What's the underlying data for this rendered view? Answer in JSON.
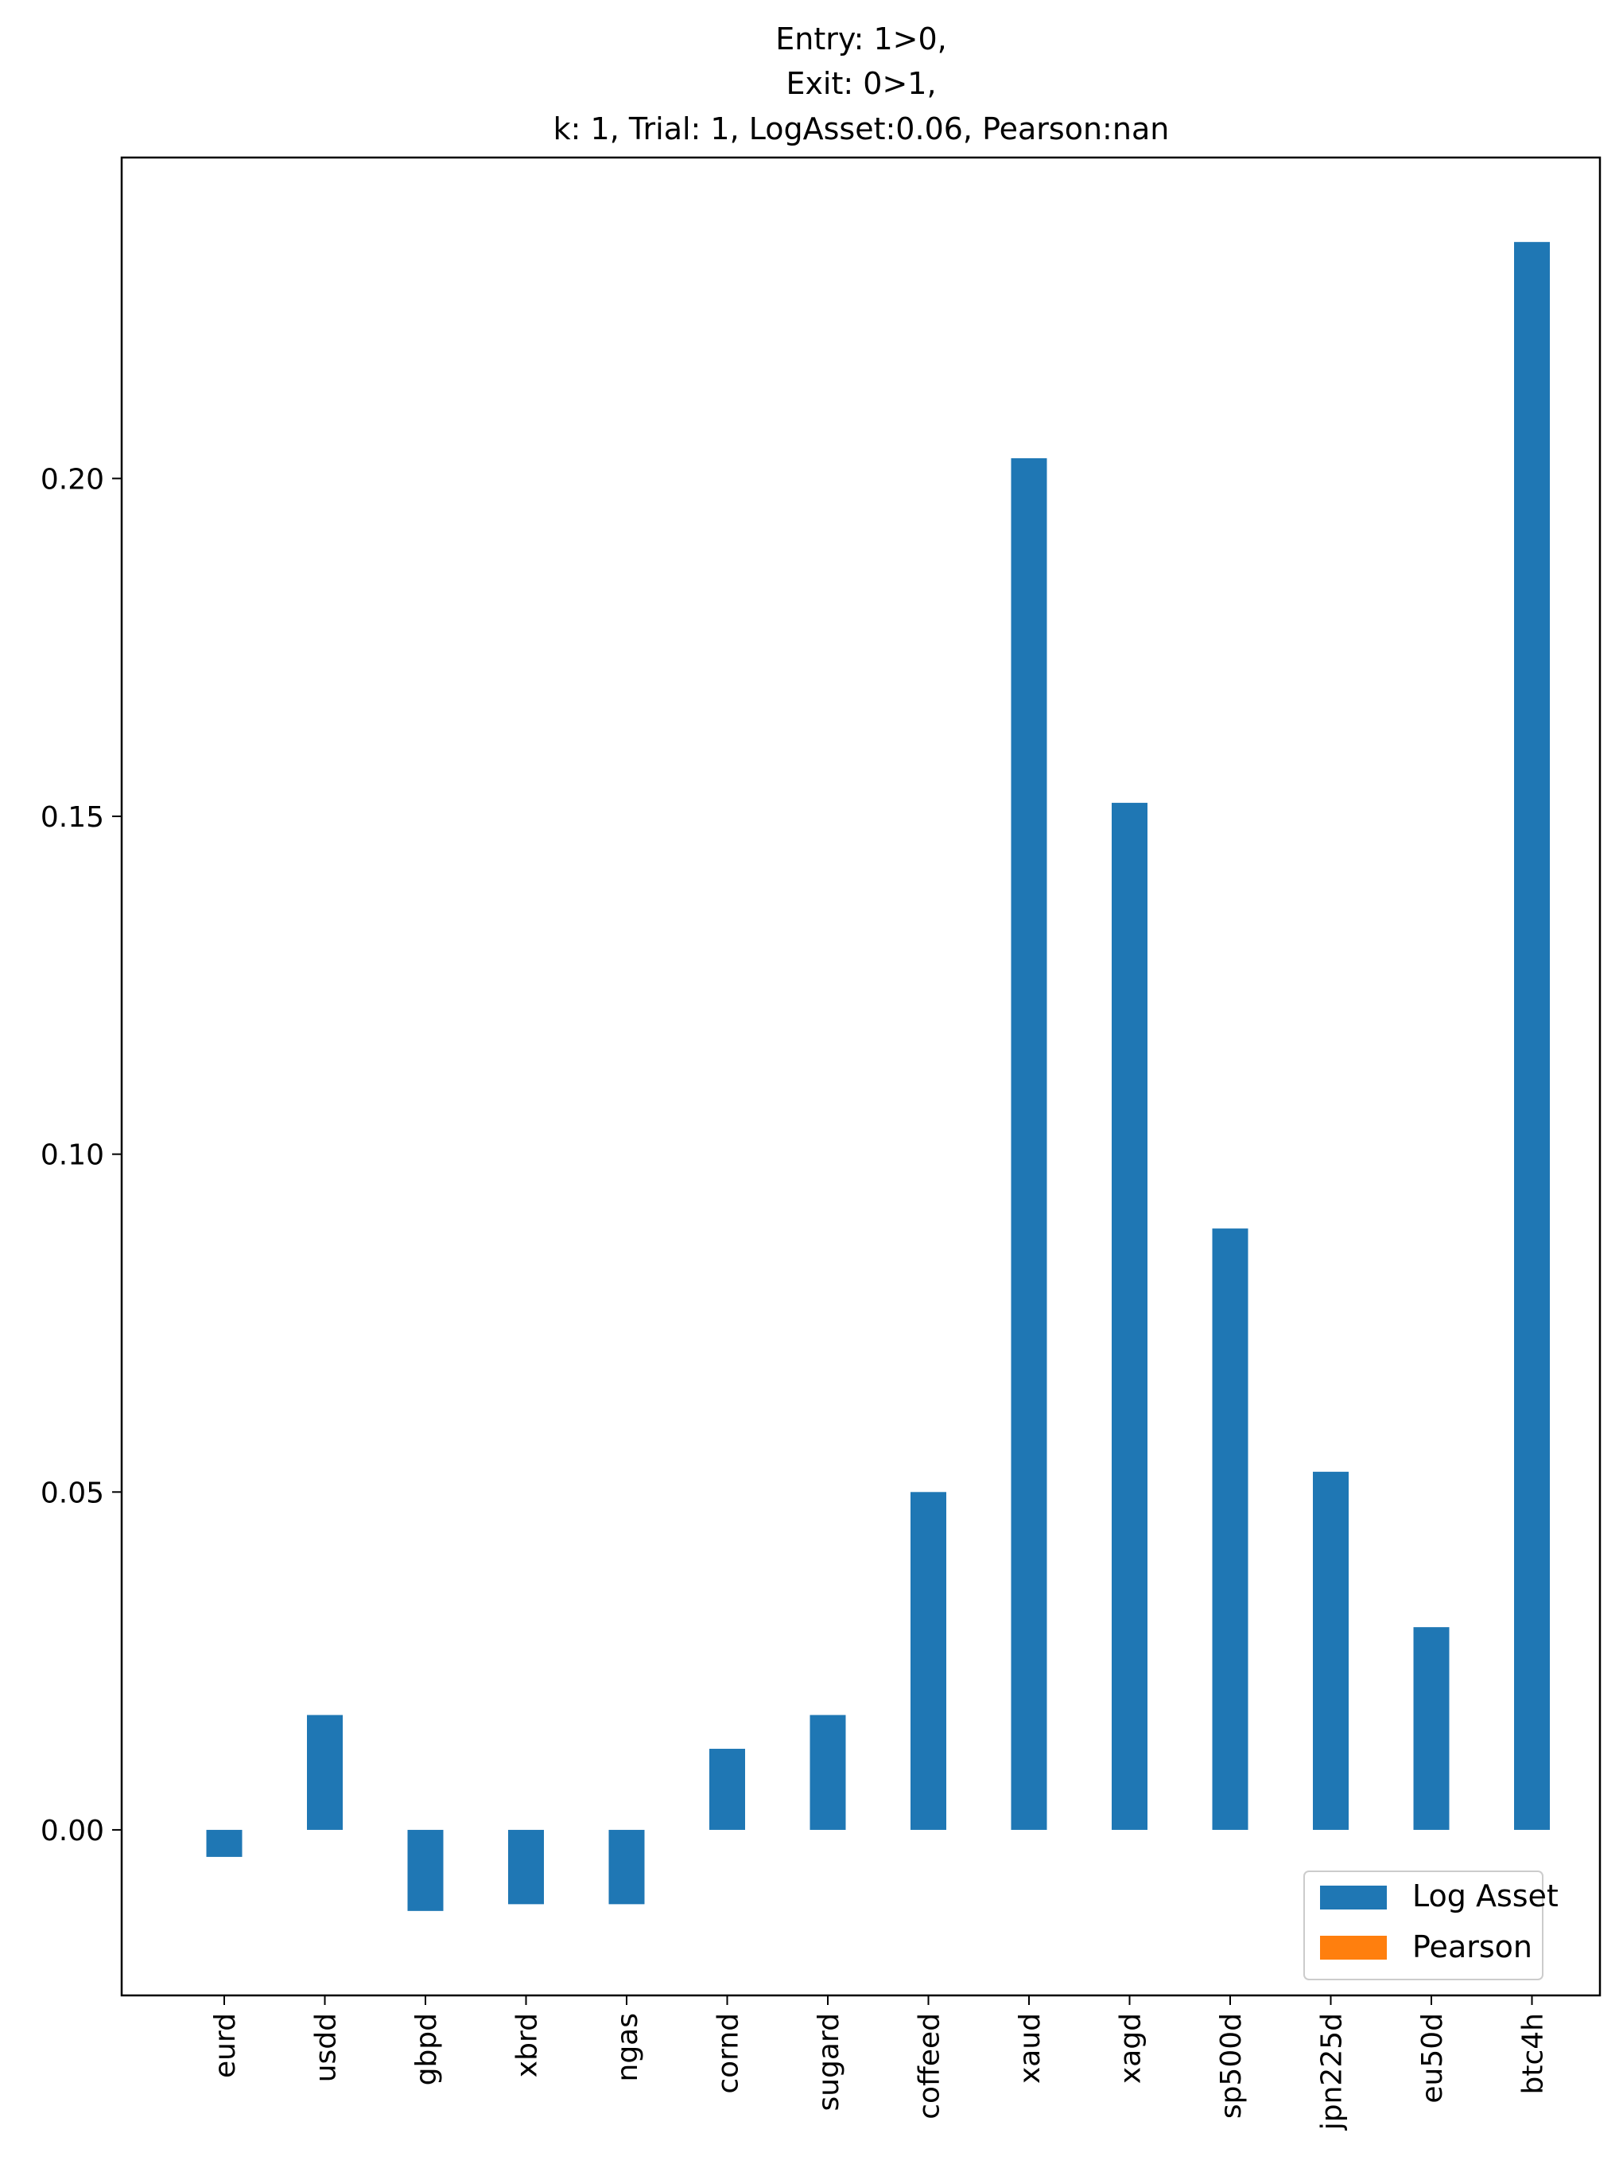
{
  "chart_data": {
    "type": "bar",
    "title_lines": [
      "Entry: 1>0,",
      "Exit: 0>1,",
      "k: 1, Trial: 1, LogAsset:0.06, Pearson:nan"
    ],
    "xlabel": "",
    "ylabel": "",
    "categories": [
      "eurd",
      "usdd",
      "gbpd",
      "xbrd",
      "ngas",
      "cornd",
      "sugard",
      "coffeed",
      "xaud",
      "xagd",
      "sp500d",
      "jpn225d",
      "eu50d",
      "btc4h"
    ],
    "series": [
      {
        "name": "Log Asset",
        "color": "#1f77b4",
        "values": [
          -0.004,
          0.017,
          -0.012,
          -0.011,
          -0.011,
          0.012,
          0.017,
          0.05,
          0.203,
          0.152,
          0.089,
          0.053,
          0.03,
          0.235
        ]
      },
      {
        "name": "Pearson",
        "color": "#ff7f0e",
        "values": [
          null,
          null,
          null,
          null,
          null,
          null,
          null,
          null,
          null,
          null,
          null,
          null,
          null,
          null
        ]
      }
    ],
    "ylim": [
      -0.0245,
      0.2475
    ],
    "yticks": [
      0.0,
      0.05,
      0.1,
      0.15,
      0.2
    ],
    "ytick_labels": [
      "0.00",
      "0.05",
      "0.10",
      "0.15",
      "0.20"
    ],
    "grid": false,
    "legend_position": "lower-right"
  }
}
